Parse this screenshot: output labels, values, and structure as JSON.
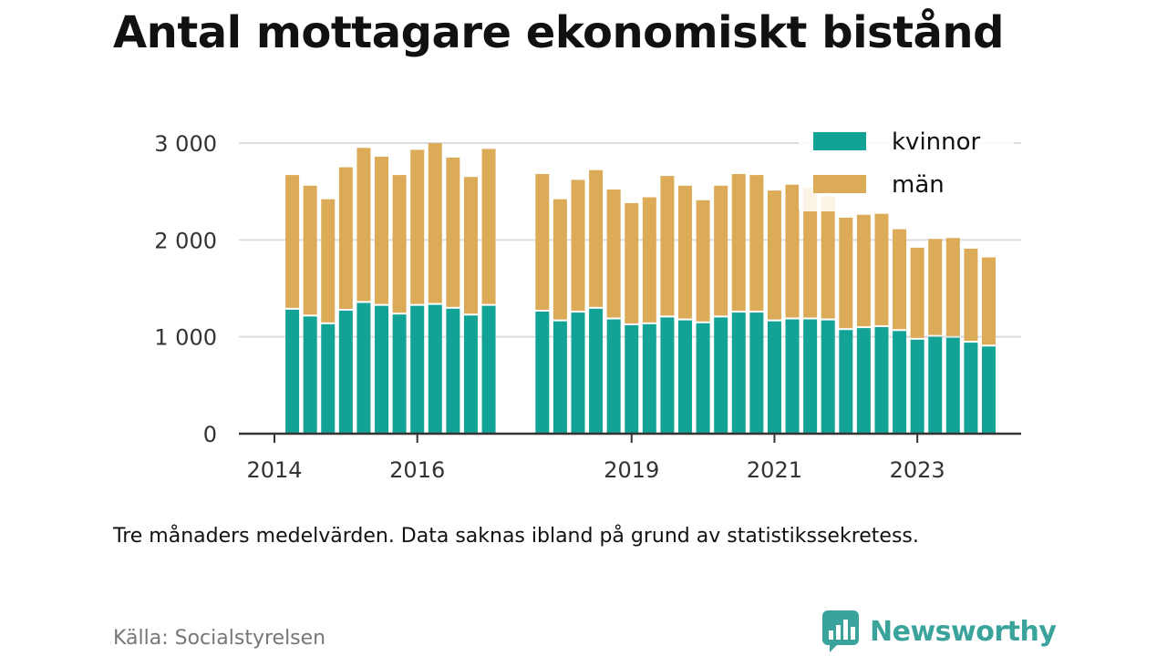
{
  "title": "Antal mottagare ekonomiskt bistånd",
  "note": "Tre månaders medelvärden. Data saknas ibland på grund av statistikssekretess.",
  "source": "Källa: Socialstyrelsen",
  "brand": "Newsworthy",
  "colors": {
    "kvinnor": "#13a396",
    "man": "#dcab58",
    "grid": "#dddddd",
    "axis": "#333333",
    "brand": "#3aa39c"
  },
  "chart_data": {
    "type": "bar",
    "stacked": true,
    "x_ticks": [
      2014,
      2016,
      2019,
      2021,
      2023
    ],
    "y_ticks": [
      {
        "value": 0,
        "label": "0"
      },
      {
        "value": 1000,
        "label": "1 000"
      },
      {
        "value": 2000,
        "label": "2 000"
      },
      {
        "value": 3000,
        "label": "3 000"
      }
    ],
    "ylim": [
      0,
      3000
    ],
    "legend_position": "top-right",
    "grid": true,
    "x": [
      2014.25,
      2014.5,
      2014.75,
      2015.0,
      2015.25,
      2015.5,
      2015.75,
      2016.0,
      2016.25,
      2016.5,
      2016.75,
      2017.0,
      2017.75,
      2018.0,
      2018.25,
      2018.5,
      2018.75,
      2019.0,
      2019.25,
      2019.5,
      2019.75,
      2020.0,
      2020.25,
      2020.5,
      2020.75,
      2021.0,
      2021.25,
      2021.5,
      2021.75,
      2022.0,
      2022.25,
      2022.5,
      2022.75,
      2023.0,
      2023.25,
      2023.5,
      2023.75,
      2024.0
    ],
    "series": [
      {
        "name": "kvinnor",
        "values": [
          1280,
          1210,
          1130,
          1270,
          1350,
          1320,
          1230,
          1320,
          1330,
          1290,
          1220,
          1320,
          1260,
          1160,
          1250,
          1290,
          1180,
          1120,
          1130,
          1200,
          1170,
          1140,
          1200,
          1250,
          1250,
          1160,
          1180,
          1180,
          1170,
          1070,
          1090,
          1100,
          1060,
          970,
          1000,
          990,
          940,
          900
        ]
      },
      {
        "name": "män",
        "values": [
          1390,
          1350,
          1290,
          1480,
          1600,
          1540,
          1440,
          1610,
          1670,
          1560,
          1430,
          1620,
          1420,
          1260,
          1370,
          1430,
          1340,
          1260,
          1310,
          1460,
          1390,
          1270,
          1360,
          1430,
          1420,
          1350,
          1390,
          1360,
          1280,
          1160,
          1170,
          1170,
          1050,
          950,
          1010,
          1030,
          970,
          920
        ]
      }
    ]
  }
}
